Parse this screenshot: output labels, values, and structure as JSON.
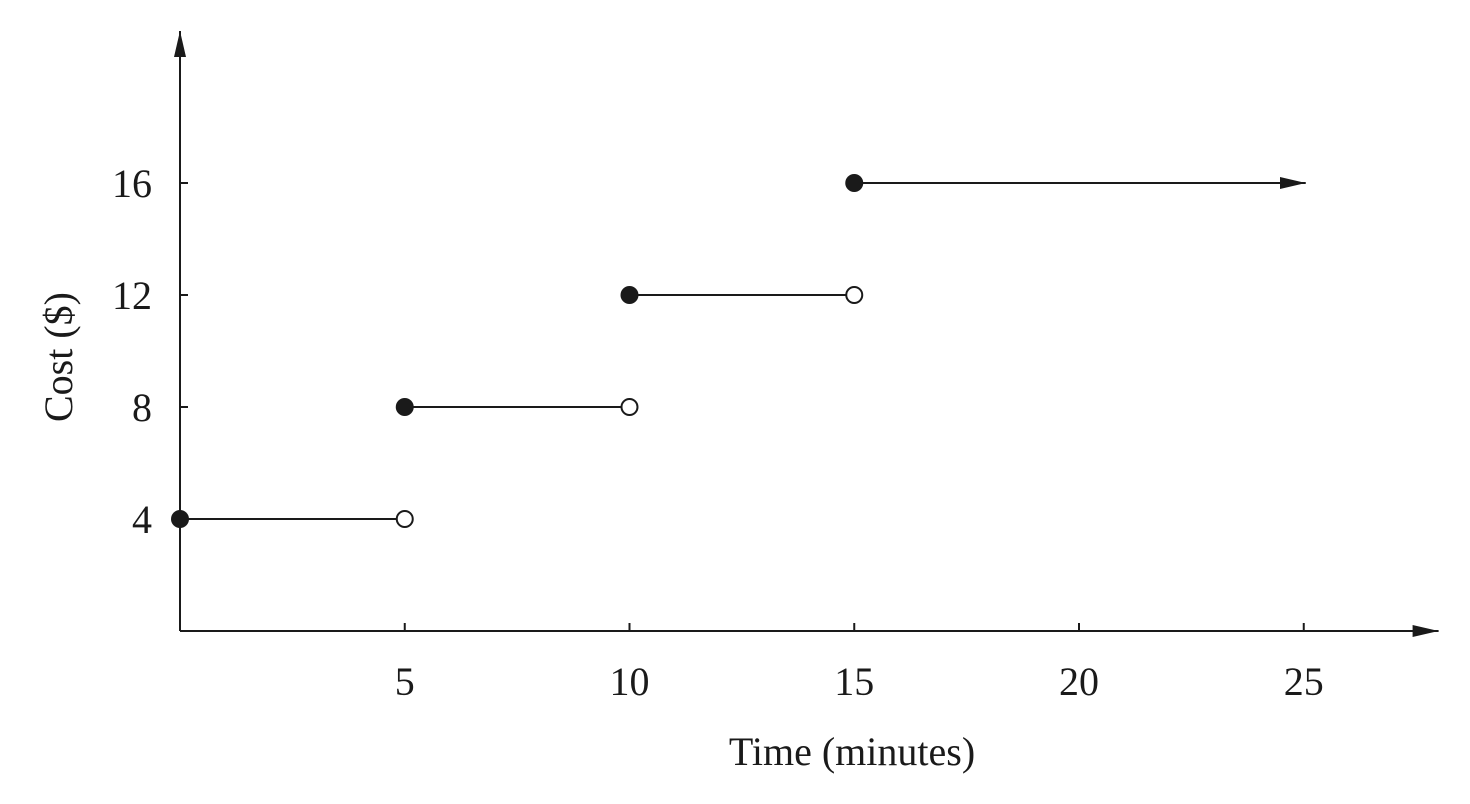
{
  "chart_data": {
    "type": "line",
    "title": "",
    "xlabel": "Time (minutes)",
    "ylabel": "Cost ($)",
    "xlim": [
      0,
      28
    ],
    "ylim": [
      0,
      21
    ],
    "xticks": [
      5,
      10,
      15,
      20,
      25
    ],
    "yticks": [
      4,
      8,
      12,
      16
    ],
    "grid": false,
    "series": [
      {
        "name": "step",
        "segments": [
          {
            "x_start": 0,
            "x_end": 5,
            "y": 4,
            "start_closed": true,
            "end_closed": false,
            "arrow": false
          },
          {
            "x_start": 5,
            "x_end": 10,
            "y": 8,
            "start_closed": true,
            "end_closed": false,
            "arrow": false
          },
          {
            "x_start": 10,
            "x_end": 15,
            "y": 12,
            "start_closed": true,
            "end_closed": false,
            "arrow": false
          },
          {
            "x_start": 15,
            "x_end": 25,
            "y": 16,
            "start_closed": true,
            "end_closed": null,
            "arrow": true
          }
        ]
      }
    ],
    "colors": {
      "ink": "#1a1a1a"
    }
  }
}
